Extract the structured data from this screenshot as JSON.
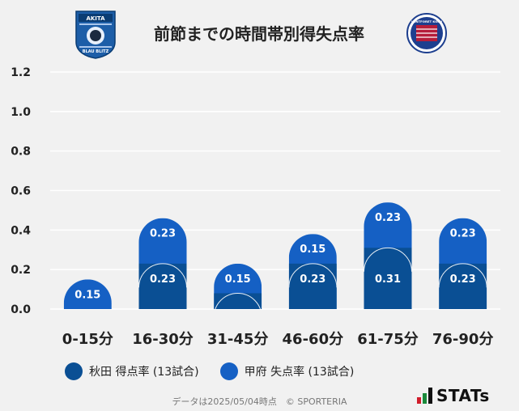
{
  "chart_data": {
    "type": "bar",
    "title": "前節までの時間帯別得失点率",
    "categories": [
      "0-15分",
      "16-30分",
      "31-45分",
      "46-60分",
      "61-75分",
      "76-90分"
    ],
    "series": [
      {
        "name": "秋田 得点率 (13試合)",
        "color": "#0a4f94",
        "values": [
          0.0,
          0.23,
          0.08,
          0.23,
          0.31,
          0.23
        ],
        "labels": [
          "",
          "0.23",
          "",
          "0.23",
          "0.31",
          "0.23"
        ]
      },
      {
        "name": "甲府 失点率 (13試合)",
        "color": "#1560c4",
        "values": [
          0.15,
          0.23,
          0.15,
          0.15,
          0.23,
          0.23
        ],
        "labels": [
          "0.15",
          "0.23",
          "0.15",
          "0.15",
          "0.23",
          "0.23"
        ]
      }
    ],
    "stacked": true,
    "yticks": [
      "0.0",
      "0.2",
      "0.4",
      "0.6",
      "0.8",
      "1.0",
      "1.2"
    ],
    "ylim": [
      0,
      1.2
    ],
    "grid": true,
    "legend_position": "bottom"
  },
  "logos": {
    "left_team": {
      "name": "BLAU BLITZ AKITA",
      "text_top": "AKITA",
      "text_bottom": "BLAU BLITZ"
    },
    "right_team": {
      "name": "VENTFORET KOFU",
      "text_top": "VENTFORET KOFU"
    }
  },
  "footer": "データは2025/05/04時点　© SPORTERIA",
  "brand": "STATs",
  "colors": {
    "background": "#f1f1f1",
    "akita": "#0a4f94",
    "kofu": "#1560c4",
    "grid": "#ffffff"
  }
}
